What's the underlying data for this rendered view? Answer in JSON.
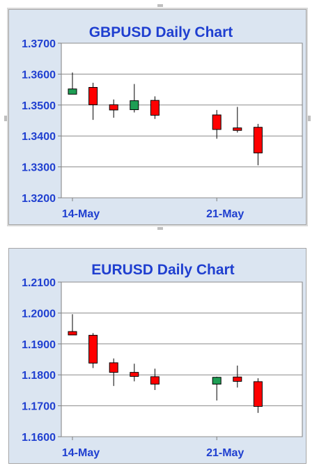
{
  "chart_data": [
    {
      "type": "candlestick",
      "title": "GBPUSD Daily Chart",
      "xlabel": "",
      "ylabel": "",
      "ylim": [
        1.32,
        1.37
      ],
      "yticks": [
        "1.3200",
        "1.3300",
        "1.3400",
        "1.3500",
        "1.3600",
        "1.3700"
      ],
      "xtick_labels": [
        {
          "label": "14-May",
          "date": "2018-05-14"
        },
        {
          "label": "21-May",
          "date": "2018-05-21"
        }
      ],
      "grid": true,
      "colors": {
        "up": "#1e9e54",
        "down": "#ff0000",
        "wick": "#000000",
        "title": "#1f3fd0",
        "plot_bg": "#ffffff",
        "outer_bg": "#dbe5f1"
      },
      "candles": [
        {
          "date": "2018-05-14",
          "open": 1.3535,
          "high": 1.3605,
          "low": 1.3535,
          "close": 1.3552
        },
        {
          "date": "2018-05-15",
          "open": 1.3557,
          "high": 1.3572,
          "low": 1.3452,
          "close": 1.3501
        },
        {
          "date": "2018-05-16",
          "open": 1.3501,
          "high": 1.3518,
          "low": 1.3459,
          "close": 1.3484
        },
        {
          "date": "2018-05-17",
          "open": 1.3485,
          "high": 1.3568,
          "low": 1.3476,
          "close": 1.3514
        },
        {
          "date": "2018-05-18",
          "open": 1.3515,
          "high": 1.3528,
          "low": 1.3455,
          "close": 1.3467
        },
        {
          "date": "2018-05-21",
          "open": 1.3468,
          "high": 1.3484,
          "low": 1.3391,
          "close": 1.3421
        },
        {
          "date": "2018-05-22",
          "open": 1.3426,
          "high": 1.3494,
          "low": 1.3411,
          "close": 1.3418
        },
        {
          "date": "2018-05-23",
          "open": 1.3428,
          "high": 1.3439,
          "low": 1.3305,
          "close": 1.3345
        }
      ]
    },
    {
      "type": "candlestick",
      "title": "EURUSD Daily Chart",
      "xlabel": "",
      "ylabel": "",
      "ylim": [
        1.16,
        1.21
      ],
      "yticks": [
        "1.1600",
        "1.1700",
        "1.1800",
        "1.1900",
        "1.2000",
        "1.2100"
      ],
      "xtick_labels": [
        {
          "label": "14-May",
          "date": "2018-05-14"
        },
        {
          "label": "21-May",
          "date": "2018-05-21"
        }
      ],
      "grid": true,
      "colors": {
        "up": "#1e9e54",
        "down": "#ff0000",
        "wick": "#000000",
        "title": "#1f3fd0",
        "plot_bg": "#ffffff",
        "outer_bg": "#dbe5f1"
      },
      "candles": [
        {
          "date": "2018-05-14",
          "open": 1.194,
          "high": 1.1996,
          "low": 1.1929,
          "close": 1.1929
        },
        {
          "date": "2018-05-15",
          "open": 1.1928,
          "high": 1.1935,
          "low": 1.1822,
          "close": 1.1838
        },
        {
          "date": "2018-05-16",
          "open": 1.1839,
          "high": 1.1853,
          "low": 1.1764,
          "close": 1.1808
        },
        {
          "date": "2018-05-17",
          "open": 1.1808,
          "high": 1.1836,
          "low": 1.1779,
          "close": 1.1795
        },
        {
          "date": "2018-05-18",
          "open": 1.1794,
          "high": 1.182,
          "low": 1.1751,
          "close": 1.177
        },
        {
          "date": "2018-05-21",
          "open": 1.177,
          "high": 1.1794,
          "low": 1.1717,
          "close": 1.1792
        },
        {
          "date": "2018-05-22",
          "open": 1.1793,
          "high": 1.183,
          "low": 1.1759,
          "close": 1.1779
        },
        {
          "date": "2018-05-23",
          "open": 1.1778,
          "high": 1.1789,
          "low": 1.1677,
          "close": 1.1698
        }
      ]
    }
  ]
}
